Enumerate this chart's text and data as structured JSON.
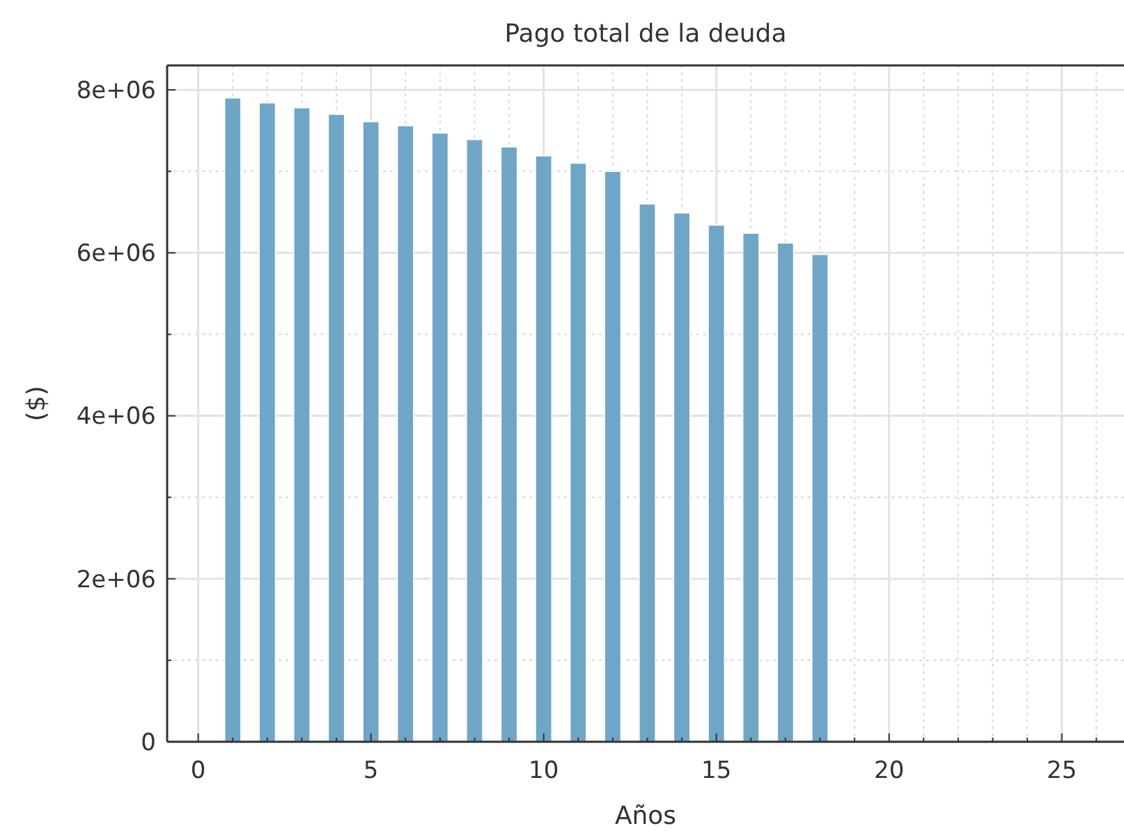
{
  "chart_data": {
    "type": "bar",
    "title": "Pago total de la deuda",
    "xlabel": "Años",
    "ylabel": "($)",
    "x": [
      1,
      2,
      3,
      4,
      5,
      6,
      7,
      8,
      9,
      10,
      11,
      12,
      13,
      14,
      15,
      16,
      17,
      18
    ],
    "values": [
      7900000,
      7840000,
      7780000,
      7700000,
      7610000,
      7560000,
      7470000,
      7390000,
      7300000,
      7190000,
      7100000,
      7000000,
      6600000,
      6490000,
      6340000,
      6240000,
      6120000,
      5980000
    ],
    "color": "#6fa5c7",
    "xlim": [
      -0.9,
      26.8
    ],
    "xticks": [
      0,
      {
        "value": 1,
        "label": null
      },
      {
        "value": 2,
        "label": null
      },
      {
        "value": 3,
        "label": null
      },
      {
        "value": 4,
        "label": null
      },
      5,
      {
        "value": 6,
        "label": null
      },
      {
        "value": 7,
        "label": null
      },
      {
        "value": 8,
        "label": null
      },
      {
        "value": 9,
        "label": null
      },
      10,
      {
        "value": 11,
        "label": null
      },
      {
        "value": 12,
        "label": null
      },
      {
        "value": 13,
        "label": null
      },
      {
        "value": 14,
        "label": null
      },
      15,
      {
        "value": 16,
        "label": null
      },
      {
        "value": 17,
        "label": null
      },
      {
        "value": 18,
        "label": null
      },
      {
        "value": 19,
        "label": null
      },
      20,
      {
        "value": 21,
        "label": null
      },
      {
        "value": 22,
        "label": null
      },
      {
        "value": 23,
        "label": null
      },
      {
        "value": 24,
        "label": null
      },
      25,
      {
        "value": 26,
        "label": null
      }
    ],
    "ylim": [
      0,
      8300000
    ],
    "yticks": [
      0,
      {
        "value": 1000000,
        "label": null
      },
      {
        "value": 2000000,
        "label": "2e+06"
      },
      {
        "value": 3000000,
        "label": null
      },
      {
        "value": 4000000,
        "label": "4e+06"
      },
      {
        "value": 5000000,
        "label": null
      },
      {
        "value": 6000000,
        "label": "6e+06"
      },
      {
        "value": 7000000,
        "label": null
      },
      {
        "value": 8000000,
        "label": "8e+06"
      }
    ],
    "grid": true
  }
}
